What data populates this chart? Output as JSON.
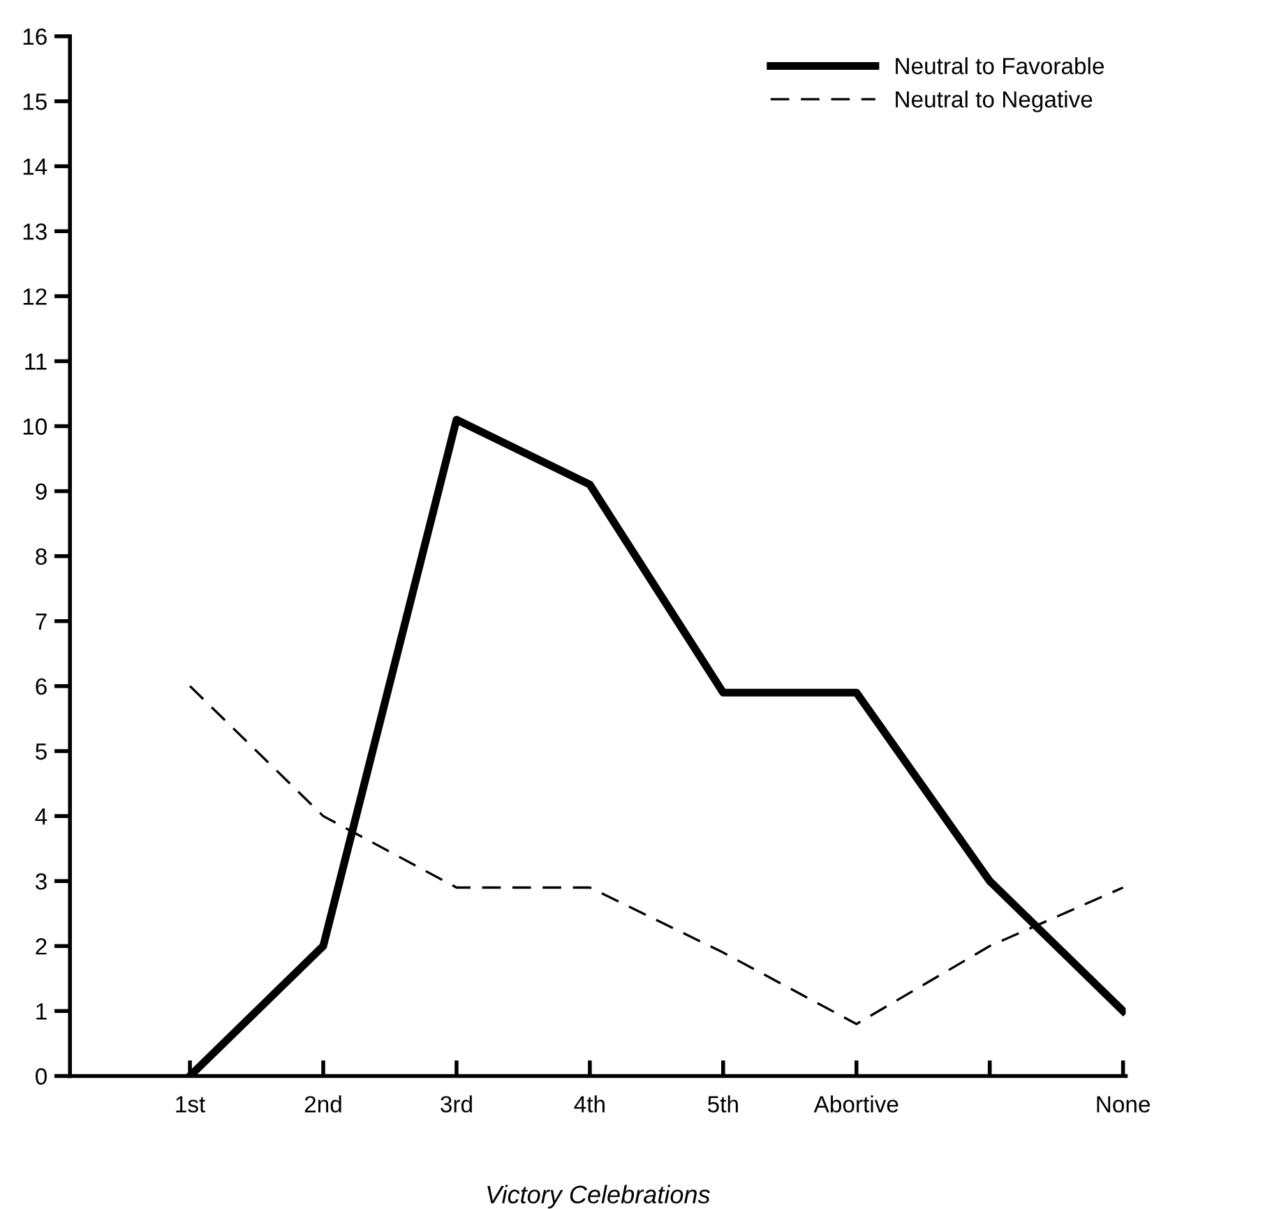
{
  "chart_data": {
    "type": "line",
    "xlabel": "Victory Celebrations",
    "categories": [
      "1st",
      "2nd",
      "3rd",
      "4th",
      "5th",
      "Abortive",
      null,
      "None"
    ],
    "series": [
      {
        "name": "Neutral to Favorable",
        "color": "#000000",
        "line_style": "solid",
        "values": [
          0,
          2,
          10.1,
          9.1,
          5.9,
          5.9,
          3,
          1
        ]
      },
      {
        "name": "Neutral to Negative",
        "color": "#000000",
        "line_style": "dashed",
        "values": [
          6,
          4,
          2.9,
          2.9,
          1.9,
          0.8,
          2,
          2.9
        ]
      }
    ],
    "ylim": [
      0,
      16
    ],
    "yticks": [
      0,
      1,
      2,
      3,
      4,
      5,
      6,
      7,
      8,
      9,
      10,
      11,
      12,
      13,
      14,
      15,
      16
    ],
    "grid": false,
    "legend": "top right",
    "marker": "none"
  }
}
